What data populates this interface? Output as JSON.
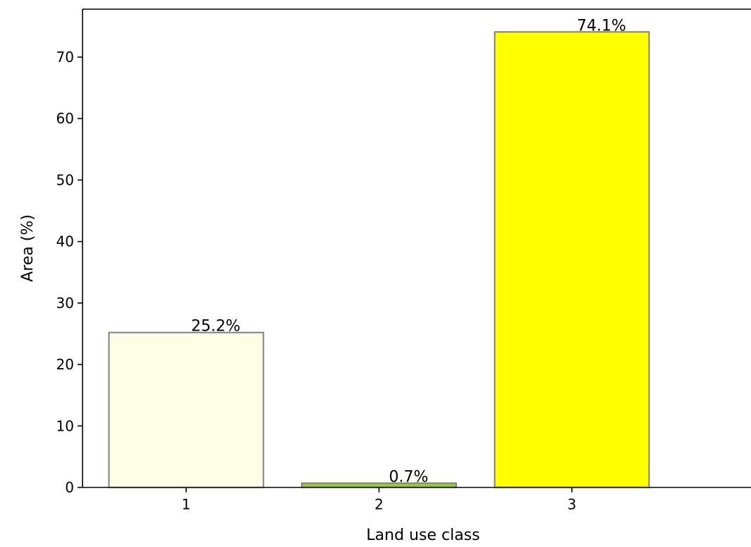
{
  "chart_data": {
    "type": "bar",
    "categories": [
      "1",
      "2",
      "3"
    ],
    "values": [
      25.2,
      0.7,
      74.1
    ],
    "data_labels": [
      "25.2%",
      "0.7%",
      "74.1%"
    ],
    "bar_colors": [
      "#fefee6",
      "#9acd32",
      "#ffff00"
    ],
    "bar_edge_color": "#808080",
    "title": "",
    "xlabel": "Land use class",
    "ylabel": "Area (%)",
    "ylim": [
      0,
      77.8
    ],
    "yticks": [
      0,
      10,
      20,
      30,
      40,
      50,
      60,
      70
    ],
    "ytick_labels": [
      "0",
      "10",
      "20",
      "30",
      "40",
      "50",
      "60",
      "70"
    ],
    "xtick_labels": [
      "1",
      "2",
      "3"
    ],
    "grid": false,
    "legend": "none"
  }
}
